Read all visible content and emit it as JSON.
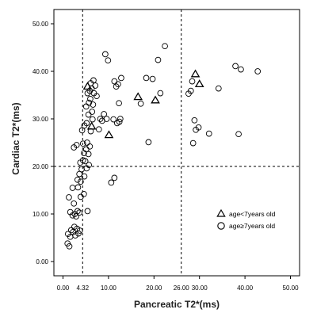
{
  "chart_data": {
    "type": "scatter",
    "title": "",
    "xlabel": "Pancreatic T2*(ms)",
    "ylabel": "Cardiac T2*(ms)",
    "xlim": [
      -2,
      52
    ],
    "ylim": [
      -3,
      53
    ],
    "x_ticks": [
      "0.00",
      "10.00",
      "20.00",
      "30.00",
      "40.00",
      "50.00"
    ],
    "x_tick_values": [
      0,
      10,
      20,
      30,
      40,
      50
    ],
    "y_ticks": [
      "0.00",
      "10.00",
      "20.00",
      "30.00",
      "40.00",
      "50.00"
    ],
    "y_tick_values": [
      0,
      10,
      20,
      30,
      40,
      50
    ],
    "reference_lines": {
      "vertical": [
        {
          "value": 4.32,
          "label": "4.32"
        },
        {
          "value": 26.0,
          "label": "26.00"
        }
      ],
      "horizontal": [
        {
          "value": 20.0,
          "label": "20.00"
        }
      ]
    },
    "legend_placement": "bottom-right",
    "grid": false,
    "series": [
      {
        "name": "age<7years old",
        "marker": "triangle",
        "points": [
          [
            5.4,
            36.8
          ],
          [
            6.3,
            28.4
          ],
          [
            10.1,
            26.6
          ],
          [
            16.5,
            34.6
          ],
          [
            20.3,
            33.9
          ],
          [
            29.1,
            39.4
          ],
          [
            30.0,
            37.3
          ]
        ]
      },
      {
        "name": "age≥7years old",
        "marker": "circle",
        "points": [
          [
            1.0,
            3.8
          ],
          [
            1.4,
            3.2
          ],
          [
            1.1,
            5.8
          ],
          [
            1.6,
            5.2
          ],
          [
            1.8,
            6.6
          ],
          [
            2.2,
            6.2
          ],
          [
            2.5,
            7.3
          ],
          [
            2.7,
            5.5
          ],
          [
            3.1,
            6.9
          ],
          [
            3.4,
            5.9
          ],
          [
            3.7,
            6.5
          ],
          [
            1.6,
            10.4
          ],
          [
            1.3,
            13.5
          ],
          [
            2.1,
            9.7
          ],
          [
            2.6,
            10.0
          ],
          [
            2.9,
            9.5
          ],
          [
            3.2,
            10.6
          ],
          [
            3.6,
            10.3
          ],
          [
            2.4,
            12.2
          ],
          [
            3.9,
            13.6
          ],
          [
            2.1,
            15.5
          ],
          [
            3.3,
            15.6
          ],
          [
            4.6,
            14.2
          ],
          [
            5.4,
            10.6
          ],
          [
            3.2,
            17.2
          ],
          [
            3.9,
            16.8
          ],
          [
            3.6,
            18.4
          ],
          [
            4.1,
            19.4
          ],
          [
            4.7,
            17.9
          ],
          [
            3.8,
            20.8
          ],
          [
            4.4,
            21.3
          ],
          [
            4.9,
            21.1
          ],
          [
            5.2,
            19.6
          ],
          [
            5.7,
            20.3
          ],
          [
            4.6,
            22.8
          ],
          [
            5.1,
            23.6
          ],
          [
            5.6,
            22.6
          ],
          [
            2.4,
            24.0
          ],
          [
            3.0,
            24.5
          ],
          [
            4.4,
            24.8
          ],
          [
            5.3,
            25.0
          ],
          [
            5.9,
            24.2
          ],
          [
            4.2,
            27.6
          ],
          [
            4.7,
            28.6
          ],
          [
            5.2,
            29.1
          ],
          [
            6.1,
            27.4
          ],
          [
            6.5,
            29.9
          ],
          [
            5.6,
            30.9
          ],
          [
            6.4,
            31.5
          ],
          [
            5.1,
            32.6
          ],
          [
            5.7,
            33.4
          ],
          [
            6.0,
            34.2
          ],
          [
            6.6,
            33.0
          ],
          [
            5.4,
            35.4
          ],
          [
            5.9,
            35.9
          ],
          [
            6.3,
            36.4
          ],
          [
            6.8,
            35.4
          ],
          [
            6.1,
            37.5
          ],
          [
            6.7,
            38.1
          ],
          [
            7.1,
            37.0
          ],
          [
            7.4,
            34.8
          ],
          [
            7.9,
            27.8
          ],
          [
            8.6,
            29.6
          ],
          [
            9.0,
            31.0
          ],
          [
            9.6,
            30.0
          ],
          [
            8.2,
            30.0
          ],
          [
            9.3,
            43.6
          ],
          [
            9.9,
            42.3
          ],
          [
            10.6,
            16.6
          ],
          [
            11.3,
            17.6
          ],
          [
            11.1,
            29.9
          ],
          [
            11.9,
            29.1
          ],
          [
            12.6,
            30.0
          ],
          [
            11.3,
            37.9
          ],
          [
            12.1,
            37.3
          ],
          [
            11.7,
            36.8
          ],
          [
            12.8,
            38.6
          ],
          [
            12.3,
            33.3
          ],
          [
            12.4,
            29.4
          ],
          [
            17.1,
            33.2
          ],
          [
            18.3,
            38.6
          ],
          [
            18.8,
            25.1
          ],
          [
            19.7,
            38.4
          ],
          [
            20.9,
            42.4
          ],
          [
            21.4,
            35.4
          ],
          [
            22.4,
            45.3
          ],
          [
            27.6,
            35.3
          ],
          [
            28.1,
            35.9
          ],
          [
            28.4,
            37.9
          ],
          [
            28.9,
            29.7
          ],
          [
            28.6,
            24.9
          ],
          [
            29.2,
            27.7
          ],
          [
            29.8,
            28.2
          ],
          [
            32.1,
            26.9
          ],
          [
            34.2,
            36.4
          ],
          [
            37.9,
            41.1
          ],
          [
            39.1,
            40.4
          ],
          [
            42.8,
            40.0
          ],
          [
            38.6,
            26.8
          ]
        ]
      }
    ]
  }
}
